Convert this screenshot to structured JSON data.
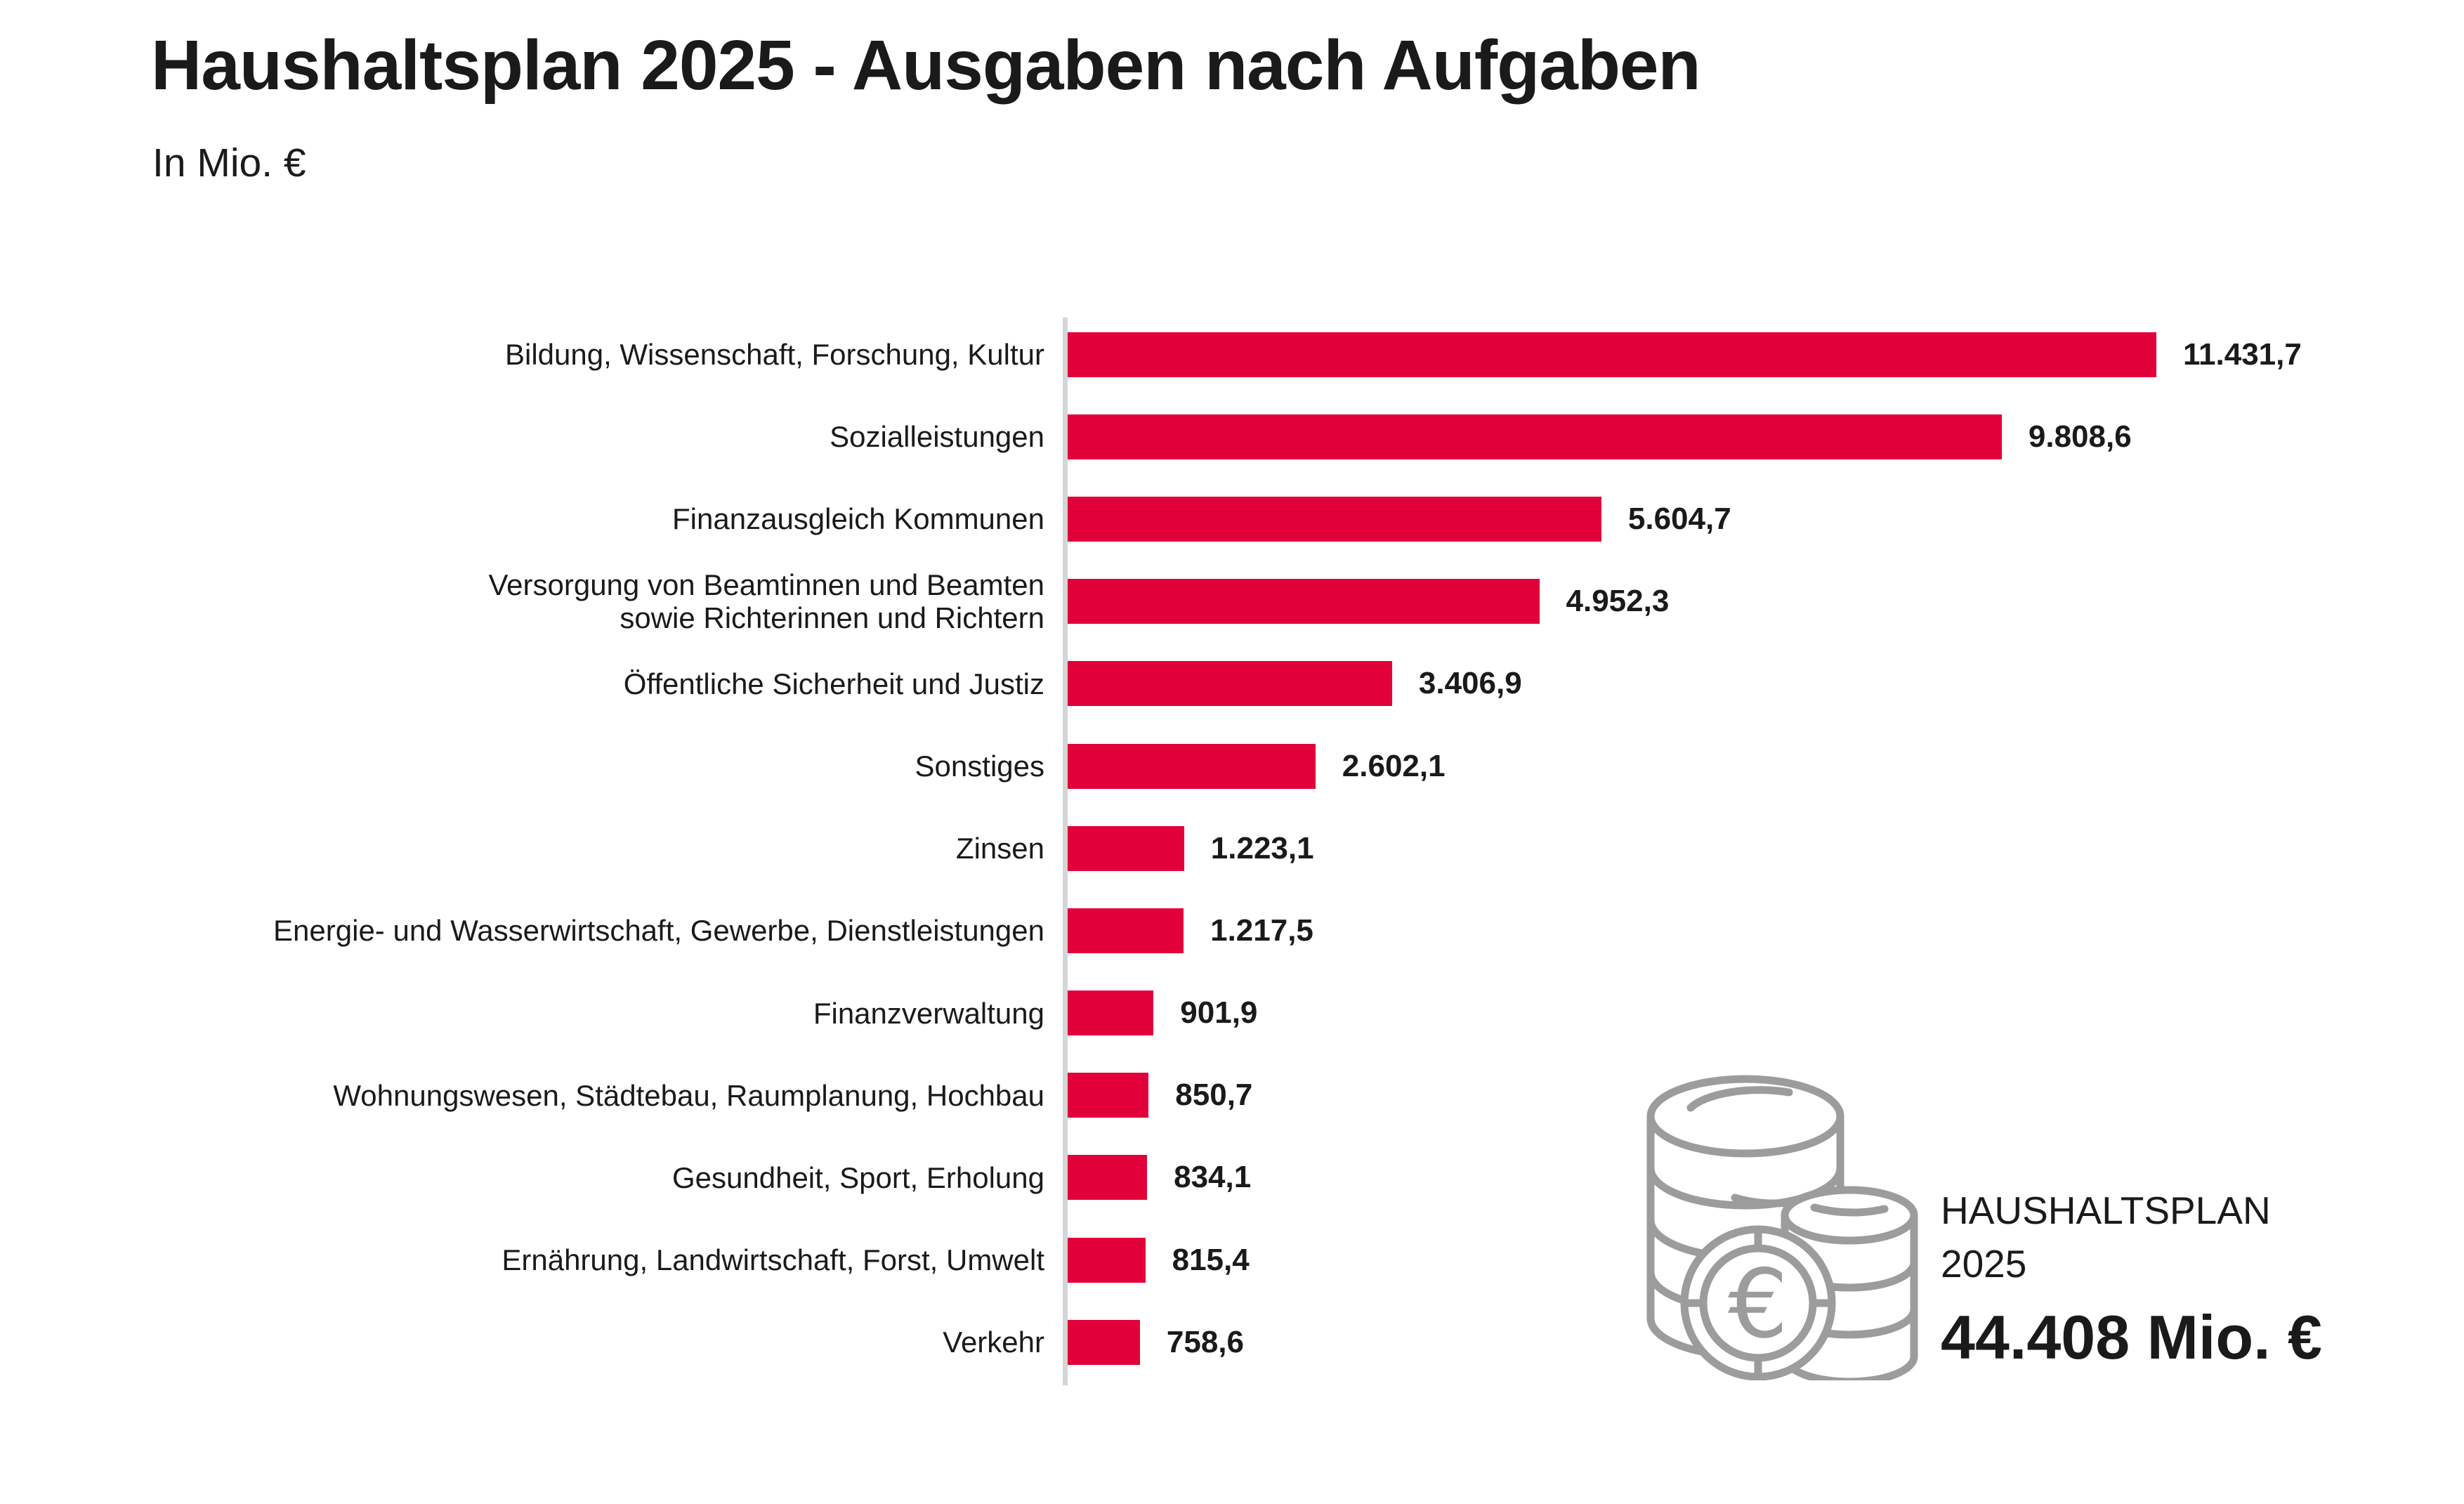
{
  "title": "Haushaltsplan 2025 - Ausgaben nach Aufgaben",
  "subtitle": "In Mio. €",
  "colors": {
    "bar": "#e2003b",
    "axis_line": "#d5d5d5",
    "icon_gray": "#9c9c9c",
    "text": "#1a1a1a"
  },
  "chart_data": {
    "type": "bar",
    "orientation": "horizontal",
    "title": "Haushaltsplan 2025 - Ausgaben nach Aufgaben",
    "unit_label": "In Mio. €",
    "xlim": [
      0,
      11431.7
    ],
    "grid": false,
    "legend": false,
    "categories": [
      "Bildung, Wissenschaft, Forschung, Kultur",
      "Sozialleistungen",
      "Finanzausgleich Kommunen",
      "Versorgung von Beamtinnen und Beamten\nsowie Richterinnen und Richtern",
      "Öffentliche Sicherheit und Justiz",
      "Sonstiges",
      "Zinsen",
      "Energie- und Wasserwirtschaft, Gewerbe, Dienstleistungen",
      "Finanzverwaltung",
      "Wohnungswesen, Städtebau, Raumplanung, Hochbau",
      "Gesundheit, Sport, Erholung",
      "Ernährung, Landwirtschaft, Forst, Umwelt",
      "Verkehr"
    ],
    "values": [
      11431.7,
      9808.6,
      5604.7,
      4952.3,
      3406.9,
      2602.1,
      1223.1,
      1217.5,
      901.9,
      850.7,
      834.1,
      815.4,
      758.6
    ],
    "value_labels": [
      "11.431,7",
      "9.808,6",
      "5.604,7",
      "4.952,3",
      "3.406,9",
      "2.602,1",
      "1.223,1",
      "1.217,5",
      "901,9",
      "850,7",
      "834,1",
      "815,4",
      "758,6"
    ]
  },
  "summary": {
    "icon": "euro-coins-icon",
    "icon_glyph": "€",
    "title_line1": "HAUSHALTSPLAN",
    "title_line2": "2025",
    "total": "44.408 Mio. €"
  }
}
